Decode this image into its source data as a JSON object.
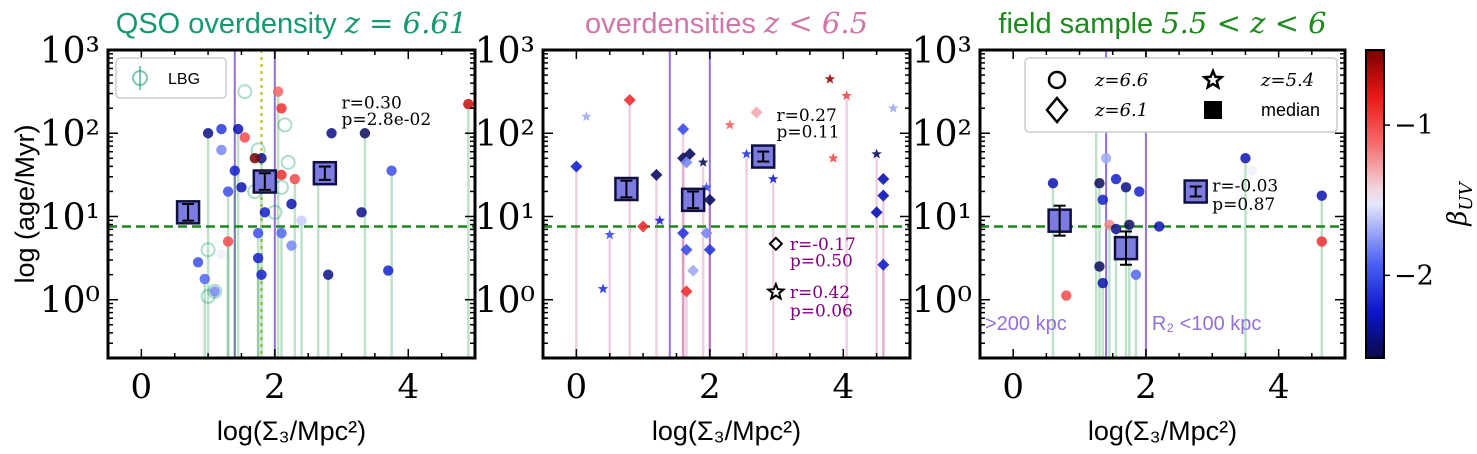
{
  "figure": {
    "ylabel": "log (age/Myr)",
    "xlabel": "log(Σ₃/Mpc²)",
    "colorbar": {
      "label": "βUV",
      "ticks": [
        "−1",
        "−2"
      ],
      "tick_values": [
        -1,
        -2
      ],
      "range": [
        -2.55,
        -0.5
      ]
    },
    "colors": {
      "qso": "#159a70",
      "over": "#d176a8",
      "field": "#1d8a1d",
      "purple": "#9370db",
      "dashed_line": "#1a8a1a",
      "dotted_line": "#c8c83c"
    }
  },
  "chart_data": [
    {
      "type": "scatter",
      "title_text": "QSO overdensity",
      "title_math": "z = 6.61",
      "title_color": "#159a70",
      "xlim": [
        -0.5,
        5
      ],
      "ylim_log": [
        -0.7,
        3
      ],
      "xticks": [
        0,
        2,
        4
      ],
      "yticks": [
        {
          "v": 0,
          "label": "10⁰"
        },
        {
          "v": 1,
          "label": "10¹"
        },
        {
          "v": 2,
          "label": "10²"
        },
        {
          "v": 3,
          "label": "10³"
        }
      ],
      "ref_hline_log": 0.88,
      "vlines": [
        1.4,
        2.0
      ],
      "dotted_vline": 1.8,
      "legend": [
        "LBG"
      ],
      "stats": [
        {
          "text": "r=0.30",
          "x": 3.0,
          "y": 2.3
        },
        {
          "text": "p=2.8e-02",
          "x": 3.0,
          "y": 2.1
        }
      ],
      "open_points": [
        {
          "x": 1.0,
          "y": 0.04
        },
        {
          "x": 1.1,
          "y": 0.1
        },
        {
          "x": 1.55,
          "y": 2.5
        },
        {
          "x": 1.75,
          "y": 1.8
        },
        {
          "x": 2.0,
          "y": 1.05
        },
        {
          "x": 2.1,
          "y": 1.35
        },
        {
          "x": 2.15,
          "y": 2.1
        },
        {
          "x": 2.2,
          "y": 1.65
        },
        {
          "x": 1.0,
          "y": 0.6
        },
        {
          "x": 1.7,
          "y": 1.3
        }
      ],
      "points": [
        {
          "x": 0.95,
          "y": 0.25,
          "b": -1.9
        },
        {
          "x": 1.1,
          "y": 0.1,
          "b": -1.8
        },
        {
          "x": 1.3,
          "y": 1.3,
          "b": -2.0
        },
        {
          "x": 1.5,
          "y": 1.35,
          "b": -2.3
        },
        {
          "x": 1.4,
          "y": 1.55,
          "b": -2.2
        },
        {
          "x": 1.2,
          "y": 1.8,
          "b": -1.8
        },
        {
          "x": 1.0,
          "y": 2.0,
          "b": -2.4
        },
        {
          "x": 1.2,
          "y": 2.05,
          "b": -2.1
        },
        {
          "x": 1.45,
          "y": 2.05,
          "b": -2.3
        },
        {
          "x": 1.55,
          "y": 1.95,
          "b": -1.0
        },
        {
          "x": 1.8,
          "y": 1.7,
          "b": -2.4
        },
        {
          "x": 1.85,
          "y": 1.05,
          "b": -2.2
        },
        {
          "x": 1.75,
          "y": 0.5,
          "b": -2.2
        },
        {
          "x": 1.8,
          "y": 0.3,
          "b": -2.2
        },
        {
          "x": 1.75,
          "y": 0.8,
          "b": -2.0
        },
        {
          "x": 2.1,
          "y": 1.5,
          "b": -0.9
        },
        {
          "x": 2.05,
          "y": 2.5,
          "b": -1.1
        },
        {
          "x": 2.1,
          "y": 2.3,
          "b": -0.9
        },
        {
          "x": 2.3,
          "y": 1.45,
          "b": -1.0
        },
        {
          "x": 2.25,
          "y": 1.15,
          "b": -2.3
        },
        {
          "x": 2.4,
          "y": 0.95,
          "b": -1.6
        },
        {
          "x": 2.25,
          "y": 0.65,
          "b": -1.8
        },
        {
          "x": 2.65,
          "y": 1.45,
          "b": -2.2
        },
        {
          "x": 2.85,
          "y": 2.0,
          "b": -2.4
        },
        {
          "x": 2.8,
          "y": 0.3,
          "b": -2.4
        },
        {
          "x": 3.3,
          "y": 1.05,
          "b": -2.4
        },
        {
          "x": 3.35,
          "y": 2.0,
          "b": -2.5
        },
        {
          "x": 3.7,
          "y": 0.35,
          "b": -2.2
        },
        {
          "x": 3.75,
          "y": 1.55,
          "b": -2.0
        },
        {
          "x": 1.7,
          "y": 1.7,
          "b": -0.5
        },
        {
          "x": 1.3,
          "y": 0.7,
          "b": -1.0
        },
        {
          "x": 1.2,
          "y": 0.55,
          "b": -1.5
        },
        {
          "x": 4.9,
          "y": 2.35,
          "b": -0.7
        },
        {
          "x": 0.85,
          "y": 0.45,
          "b": -2.0
        },
        {
          "x": 2.1,
          "y": 0.8,
          "b": -1.9
        }
      ],
      "medians": [
        {
          "x": 0.7,
          "y": 1.05,
          "yerr": 0.1
        },
        {
          "x": 1.85,
          "y": 1.42,
          "yerr": 0.1
        },
        {
          "x": 2.75,
          "y": 1.52,
          "yerr": 0.08
        }
      ]
    },
    {
      "type": "scatter",
      "title_text": "overdensities",
      "title_math": "z < 6.5",
      "title_color": "#d176a8",
      "xlim": [
        -0.5,
        5
      ],
      "ylim_log": [
        -0.7,
        3
      ],
      "xticks": [
        0,
        2,
        4
      ],
      "yticks": [
        {
          "v": 0,
          "label": "10⁰"
        },
        {
          "v": 1,
          "label": "10¹"
        },
        {
          "v": 2,
          "label": "10²"
        },
        {
          "v": 3,
          "label": "10³"
        }
      ],
      "ref_hline_log": 0.88,
      "vlines": [
        1.4,
        2.0
      ],
      "stats": [
        {
          "text": "r=0.27",
          "x": 3.0,
          "y": 2.15
        },
        {
          "text": "p=0.11",
          "x": 3.0,
          "y": 1.95
        },
        {
          "text": "r=-0.17",
          "x": 3.2,
          "y": 0.6,
          "marker": "diamond"
        },
        {
          "text": "p=0.50",
          "x": 3.2,
          "y": 0.4
        },
        {
          "text": "r=0.42",
          "x": 3.2,
          "y": 0.02,
          "marker": "star"
        },
        {
          "text": "p=0.06",
          "x": 3.2,
          "y": -0.2
        }
      ],
      "points": [
        {
          "x": 0.0,
          "y": 1.6,
          "b": -2.2,
          "m": "d"
        },
        {
          "x": 0.15,
          "y": 2.2,
          "b": -1.7,
          "m": "s"
        },
        {
          "x": 0.5,
          "y": 0.78,
          "b": -2.0,
          "m": "s"
        },
        {
          "x": 0.4,
          "y": 0.13,
          "b": -2.1,
          "m": "s"
        },
        {
          "x": 0.8,
          "y": 2.4,
          "b": -0.9,
          "m": "d"
        },
        {
          "x": 1.0,
          "y": 0.88,
          "b": -0.9,
          "m": "d"
        },
        {
          "x": 1.2,
          "y": 1.5,
          "b": -2.5,
          "m": "d"
        },
        {
          "x": 1.25,
          "y": 0.95,
          "b": -2.2,
          "m": "s"
        },
        {
          "x": 1.6,
          "y": 1.7,
          "b": -2.5,
          "m": "d"
        },
        {
          "x": 1.7,
          "y": 1.75,
          "b": -2.5,
          "m": "d"
        },
        {
          "x": 1.6,
          "y": 2.05,
          "b": -2.0,
          "m": "d"
        },
        {
          "x": 1.65,
          "y": 1.65,
          "b": -1.8,
          "m": "d"
        },
        {
          "x": 1.6,
          "y": 0.8,
          "b": -2.1,
          "m": "d"
        },
        {
          "x": 1.65,
          "y": 0.6,
          "b": -2.0,
          "m": "d"
        },
        {
          "x": 1.65,
          "y": 0.1,
          "b": -0.9,
          "m": "d"
        },
        {
          "x": 1.75,
          "y": 0.35,
          "b": -1.7,
          "m": "d"
        },
        {
          "x": 1.9,
          "y": 1.65,
          "b": -2.5,
          "m": "s"
        },
        {
          "x": 1.95,
          "y": 1.35,
          "b": -2.0,
          "m": "s"
        },
        {
          "x": 2.0,
          "y": 1.2,
          "b": -2.5,
          "m": "d"
        },
        {
          "x": 1.95,
          "y": 0.8,
          "b": -1.8,
          "m": "d"
        },
        {
          "x": 2.0,
          "y": 0.6,
          "b": -2.1,
          "m": "d"
        },
        {
          "x": 2.3,
          "y": 2.1,
          "b": -1.1,
          "m": "s"
        },
        {
          "x": 2.55,
          "y": 1.75,
          "b": -2.1,
          "m": "s"
        },
        {
          "x": 2.7,
          "y": 2.25,
          "b": -1.3,
          "m": "d"
        },
        {
          "x": 2.95,
          "y": 1.45,
          "b": -2.2,
          "m": "s"
        },
        {
          "x": 3.8,
          "y": 2.65,
          "b": -0.6,
          "m": "s"
        },
        {
          "x": 4.05,
          "y": 2.45,
          "b": -1.0,
          "m": "s"
        },
        {
          "x": 3.85,
          "y": 1.7,
          "b": -1.0,
          "m": "s"
        },
        {
          "x": 4.5,
          "y": 1.75,
          "b": -2.5,
          "m": "s"
        },
        {
          "x": 4.6,
          "y": 1.45,
          "b": -2.3,
          "m": "d"
        },
        {
          "x": 4.6,
          "y": 1.25,
          "b": -2.3,
          "m": "d"
        },
        {
          "x": 4.5,
          "y": 1.05,
          "b": -2.3,
          "m": "d"
        },
        {
          "x": 4.6,
          "y": 0.42,
          "b": -2.2,
          "m": "d"
        },
        {
          "x": 4.75,
          "y": 2.3,
          "b": -1.7,
          "m": "s"
        }
      ],
      "medians": [
        {
          "x": 0.75,
          "y": 1.33,
          "yerr": 0.1
        },
        {
          "x": 1.75,
          "y": 1.2,
          "yerr": 0.1
        },
        {
          "x": 2.8,
          "y": 1.72,
          "yerr": 0.06
        }
      ]
    },
    {
      "type": "scatter",
      "title_text": "field sample",
      "title_math": "5.5 < z < 6",
      "title_color": "#1d8a1d",
      "xlim": [
        -0.5,
        5
      ],
      "ylim_log": [
        -0.7,
        3
      ],
      "xticks": [
        0,
        2,
        4
      ],
      "yticks": [
        {
          "v": 0,
          "label": "10⁰"
        },
        {
          "v": 1,
          "label": "10¹"
        },
        {
          "v": 2,
          "label": "10²"
        },
        {
          "v": 3,
          "label": "10³"
        }
      ],
      "ref_hline_log": 0.88,
      "vlines": [
        1.4,
        2.0
      ],
      "legend": [
        "z=6.6",
        "z=6.1",
        "z=5.4",
        "median"
      ],
      "labels_inside": [
        ">200 kpc",
        "R₂ <100 kpc"
      ],
      "stats": [
        {
          "text": "r=-0.03",
          "x": 3.0,
          "y": 1.3
        },
        {
          "text": "p=0.87",
          "x": 3.0,
          "y": 1.08
        }
      ],
      "points": [
        {
          "x": 0.6,
          "y": 1.4,
          "b": -2.3
        },
        {
          "x": 0.8,
          "y": 0.05,
          "b": -1.0
        },
        {
          "x": 1.3,
          "y": 1.4,
          "b": -2.5
        },
        {
          "x": 1.35,
          "y": 1.2,
          "b": -2.2
        },
        {
          "x": 1.45,
          "y": 0.9,
          "b": -1.2
        },
        {
          "x": 1.3,
          "y": 0.4,
          "b": -2.5
        },
        {
          "x": 1.35,
          "y": 0.2,
          "b": -2.3
        },
        {
          "x": 1.55,
          "y": 1.45,
          "b": -2.2
        },
        {
          "x": 1.55,
          "y": 0.85,
          "b": -2.4
        },
        {
          "x": 1.6,
          "y": 0.55,
          "b": -2.3
        },
        {
          "x": 1.7,
          "y": 1.35,
          "b": -2.4
        },
        {
          "x": 1.65,
          "y": 0.62,
          "b": -2.4
        },
        {
          "x": 1.75,
          "y": 0.9,
          "b": -2.5
        },
        {
          "x": 1.9,
          "y": 1.3,
          "b": -2.2
        },
        {
          "x": 1.85,
          "y": 0.3,
          "b": -1.9
        },
        {
          "x": 2.2,
          "y": 0.88,
          "b": -2.3
        },
        {
          "x": 3.5,
          "y": 1.7,
          "b": -2.3
        },
        {
          "x": 3.6,
          "y": 1.55,
          "b": -1.5
        },
        {
          "x": 4.65,
          "y": 1.25,
          "b": -2.3
        },
        {
          "x": 4.65,
          "y": 0.7,
          "b": -0.9
        },
        {
          "x": 1.25,
          "y": 2.2,
          "b": -1.6
        },
        {
          "x": 1.4,
          "y": 1.7,
          "b": -1.7
        }
      ],
      "medians": [
        {
          "x": 0.7,
          "y": 0.95,
          "yerr": 0.18
        },
        {
          "x": 1.7,
          "y": 0.62,
          "yerr": 0.2
        },
        {
          "x": 2.75,
          "y": 1.3,
          "yerr": 0.06
        }
      ]
    }
  ]
}
